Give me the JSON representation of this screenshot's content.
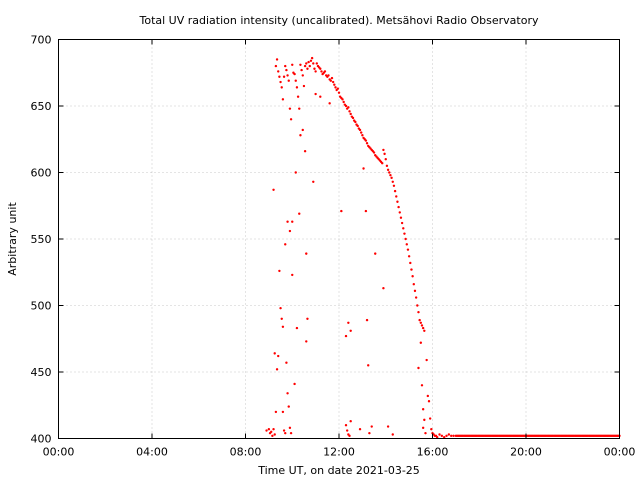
{
  "chart_data": {
    "type": "scatter",
    "title": "Total UV radiation intensity (uncalibrated). Metsähovi Radio Observatory",
    "xlabel": "Time UT, on date 2021-03-25",
    "ylabel": "Arbitrary unit",
    "xlim": [
      0,
      24
    ],
    "ylim": [
      400,
      700
    ],
    "x_ticks": [
      0,
      4,
      8,
      12,
      16,
      20,
      24
    ],
    "x_tick_labels": [
      "00:00",
      "04:00",
      "08:00",
      "12:00",
      "16:00",
      "20:00",
      "00:00"
    ],
    "y_ticks": [
      400,
      450,
      500,
      550,
      600,
      650,
      700
    ],
    "y_tick_labels": [
      "400",
      "450",
      "500",
      "550",
      "600",
      "650",
      "700"
    ],
    "grid": true,
    "marker_color": "#ff0000",
    "series": [
      {
        "points": [
          [
            8.9,
            406
          ],
          [
            9.0,
            407
          ],
          [
            9.05,
            404
          ],
          [
            9.1,
            405
          ],
          [
            9.15,
            402
          ],
          [
            9.2,
            407
          ],
          [
            9.25,
            403
          ],
          [
            9.2,
            587
          ],
          [
            9.25,
            464
          ],
          [
            9.3,
            420
          ],
          [
            9.35,
            452
          ],
          [
            9.4,
            462
          ],
          [
            9.45,
            526
          ],
          [
            9.5,
            498
          ],
          [
            9.55,
            490
          ],
          [
            9.6,
            484
          ],
          [
            9.6,
            420
          ],
          [
            9.65,
            406
          ],
          [
            9.7,
            404
          ],
          [
            9.75,
            457
          ],
          [
            9.8,
            434
          ],
          [
            9.85,
            424
          ],
          [
            9.9,
            408
          ],
          [
            9.95,
            404
          ],
          [
            9.7,
            546
          ],
          [
            9.8,
            563
          ],
          [
            9.9,
            556
          ],
          [
            10.0,
            563
          ],
          [
            10.0,
            523
          ],
          [
            10.1,
            441
          ],
          [
            10.15,
            600
          ],
          [
            10.2,
            483
          ],
          [
            10.3,
            569
          ],
          [
            10.35,
            628
          ],
          [
            10.45,
            632
          ],
          [
            10.55,
            616
          ],
          [
            10.6,
            539
          ],
          [
            10.65,
            490
          ],
          [
            10.6,
            473
          ],
          [
            10.9,
            593
          ],
          [
            11.0,
            659
          ],
          [
            11.2,
            657
          ],
          [
            11.6,
            652
          ],
          [
            9.3,
            680
          ],
          [
            9.35,
            685
          ],
          [
            9.4,
            676
          ],
          [
            9.45,
            672
          ],
          [
            9.5,
            668
          ],
          [
            9.55,
            664
          ],
          [
            9.6,
            655
          ],
          [
            9.65,
            672
          ],
          [
            9.7,
            680
          ],
          [
            9.75,
            677
          ],
          [
            9.8,
            673
          ],
          [
            9.85,
            669
          ],
          [
            9.9,
            648
          ],
          [
            9.95,
            640
          ],
          [
            10.0,
            681
          ],
          [
            10.05,
            675
          ],
          [
            10.1,
            674
          ],
          [
            10.15,
            669
          ],
          [
            10.2,
            664
          ],
          [
            10.25,
            657
          ],
          [
            10.3,
            648
          ],
          [
            10.35,
            681
          ],
          [
            10.4,
            677
          ],
          [
            10.45,
            673
          ],
          [
            10.5,
            665
          ],
          [
            10.55,
            680
          ],
          [
            10.6,
            682
          ],
          [
            10.65,
            678
          ],
          [
            10.7,
            683
          ],
          [
            10.75,
            680
          ],
          [
            10.8,
            684
          ],
          [
            10.85,
            686
          ],
          [
            10.9,
            682
          ],
          [
            10.95,
            678
          ],
          [
            11.0,
            676
          ],
          [
            11.05,
            682
          ],
          [
            11.1,
            680
          ],
          [
            11.15,
            679
          ],
          [
            11.2,
            678
          ],
          [
            11.25,
            676
          ],
          [
            11.3,
            674
          ],
          [
            11.35,
            675
          ],
          [
            11.4,
            676
          ],
          [
            11.45,
            673
          ],
          [
            11.5,
            672
          ],
          [
            11.55,
            673
          ],
          [
            11.6,
            670
          ],
          [
            11.65,
            669
          ],
          [
            11.7,
            671
          ],
          [
            11.75,
            668
          ],
          [
            11.8,
            666
          ],
          [
            11.85,
            664
          ],
          [
            11.9,
            662
          ],
          [
            11.95,
            663
          ],
          [
            12.0,
            660
          ],
          [
            12.05,
            657
          ],
          [
            12.1,
            656
          ],
          [
            12.15,
            655
          ],
          [
            12.2,
            653
          ],
          [
            12.25,
            651
          ],
          [
            12.3,
            650
          ],
          [
            12.35,
            648
          ],
          [
            12.4,
            649
          ],
          [
            12.45,
            646
          ],
          [
            12.5,
            644
          ],
          [
            12.55,
            642
          ],
          [
            12.6,
            641
          ],
          [
            12.65,
            639
          ],
          [
            12.7,
            638
          ],
          [
            12.75,
            636
          ],
          [
            12.8,
            635
          ],
          [
            12.85,
            633
          ],
          [
            12.9,
            632
          ],
          [
            12.95,
            630
          ],
          [
            13.0,
            628
          ],
          [
            13.05,
            626
          ],
          [
            13.1,
            625
          ],
          [
            13.15,
            624
          ],
          [
            13.2,
            622
          ],
          [
            13.25,
            620
          ],
          [
            13.3,
            619
          ],
          [
            13.35,
            618
          ],
          [
            13.4,
            617
          ],
          [
            13.45,
            616
          ],
          [
            13.5,
            615
          ],
          [
            13.55,
            613
          ],
          [
            13.6,
            612
          ],
          [
            13.65,
            611
          ],
          [
            13.7,
            610
          ],
          [
            13.75,
            609
          ],
          [
            13.8,
            608
          ],
          [
            13.85,
            607
          ],
          [
            13.9,
            617
          ],
          [
            13.95,
            614
          ],
          [
            14.0,
            610
          ],
          [
            14.05,
            605
          ],
          [
            14.1,
            602
          ],
          [
            14.15,
            600
          ],
          [
            14.2,
            598
          ],
          [
            14.25,
            596
          ],
          [
            14.3,
            593
          ],
          [
            14.35,
            590
          ],
          [
            14.4,
            586
          ],
          [
            14.45,
            582
          ],
          [
            14.5,
            578
          ],
          [
            14.55,
            574
          ],
          [
            14.6,
            570
          ],
          [
            14.65,
            566
          ],
          [
            14.7,
            562
          ],
          [
            14.75,
            558
          ],
          [
            14.8,
            554
          ],
          [
            14.85,
            550
          ],
          [
            14.9,
            546
          ],
          [
            14.95,
            542
          ],
          [
            15.0,
            537
          ],
          [
            15.05,
            532
          ],
          [
            15.1,
            527
          ],
          [
            15.15,
            522
          ],
          [
            15.2,
            516
          ],
          [
            15.25,
            511
          ],
          [
            15.3,
            506
          ],
          [
            15.35,
            500
          ],
          [
            15.4,
            495
          ],
          [
            15.45,
            489
          ],
          [
            15.5,
            487
          ],
          [
            15.55,
            485
          ],
          [
            15.6,
            483
          ],
          [
            15.65,
            481
          ],
          [
            12.1,
            571
          ],
          [
            12.3,
            477
          ],
          [
            12.4,
            487
          ],
          [
            12.5,
            481
          ],
          [
            12.3,
            410
          ],
          [
            12.35,
            406
          ],
          [
            12.4,
            403
          ],
          [
            12.45,
            402
          ],
          [
            12.5,
            413
          ],
          [
            12.9,
            407
          ],
          [
            13.05,
            603
          ],
          [
            13.15,
            571
          ],
          [
            13.2,
            489
          ],
          [
            13.25,
            455
          ],
          [
            13.3,
            404
          ],
          [
            13.4,
            409
          ],
          [
            13.55,
            539
          ],
          [
            13.9,
            513
          ],
          [
            14.1,
            409
          ],
          [
            14.3,
            403
          ],
          [
            15.4,
            453
          ],
          [
            15.5,
            472
          ],
          [
            15.55,
            440
          ],
          [
            15.6,
            422
          ],
          [
            15.65,
            414
          ],
          [
            15.6,
            408
          ],
          [
            15.7,
            404
          ],
          [
            15.75,
            459
          ],
          [
            15.8,
            432
          ],
          [
            15.85,
            428
          ],
          [
            15.9,
            415
          ],
          [
            15.95,
            407
          ],
          [
            16.0,
            404
          ],
          [
            16.05,
            403
          ],
          [
            16.1,
            402
          ],
          [
            16.15,
            402
          ],
          [
            16.2,
            401
          ],
          [
            16.3,
            403
          ],
          [
            16.4,
            402
          ],
          [
            16.5,
            401
          ],
          [
            16.6,
            402
          ],
          [
            16.7,
            403
          ],
          [
            16.8,
            402
          ],
          [
            16.9,
            402
          ]
        ]
      }
    ],
    "baseline": {
      "x_start": 17.0,
      "x_end": 24.0,
      "step": 0.05,
      "y": 402
    }
  }
}
